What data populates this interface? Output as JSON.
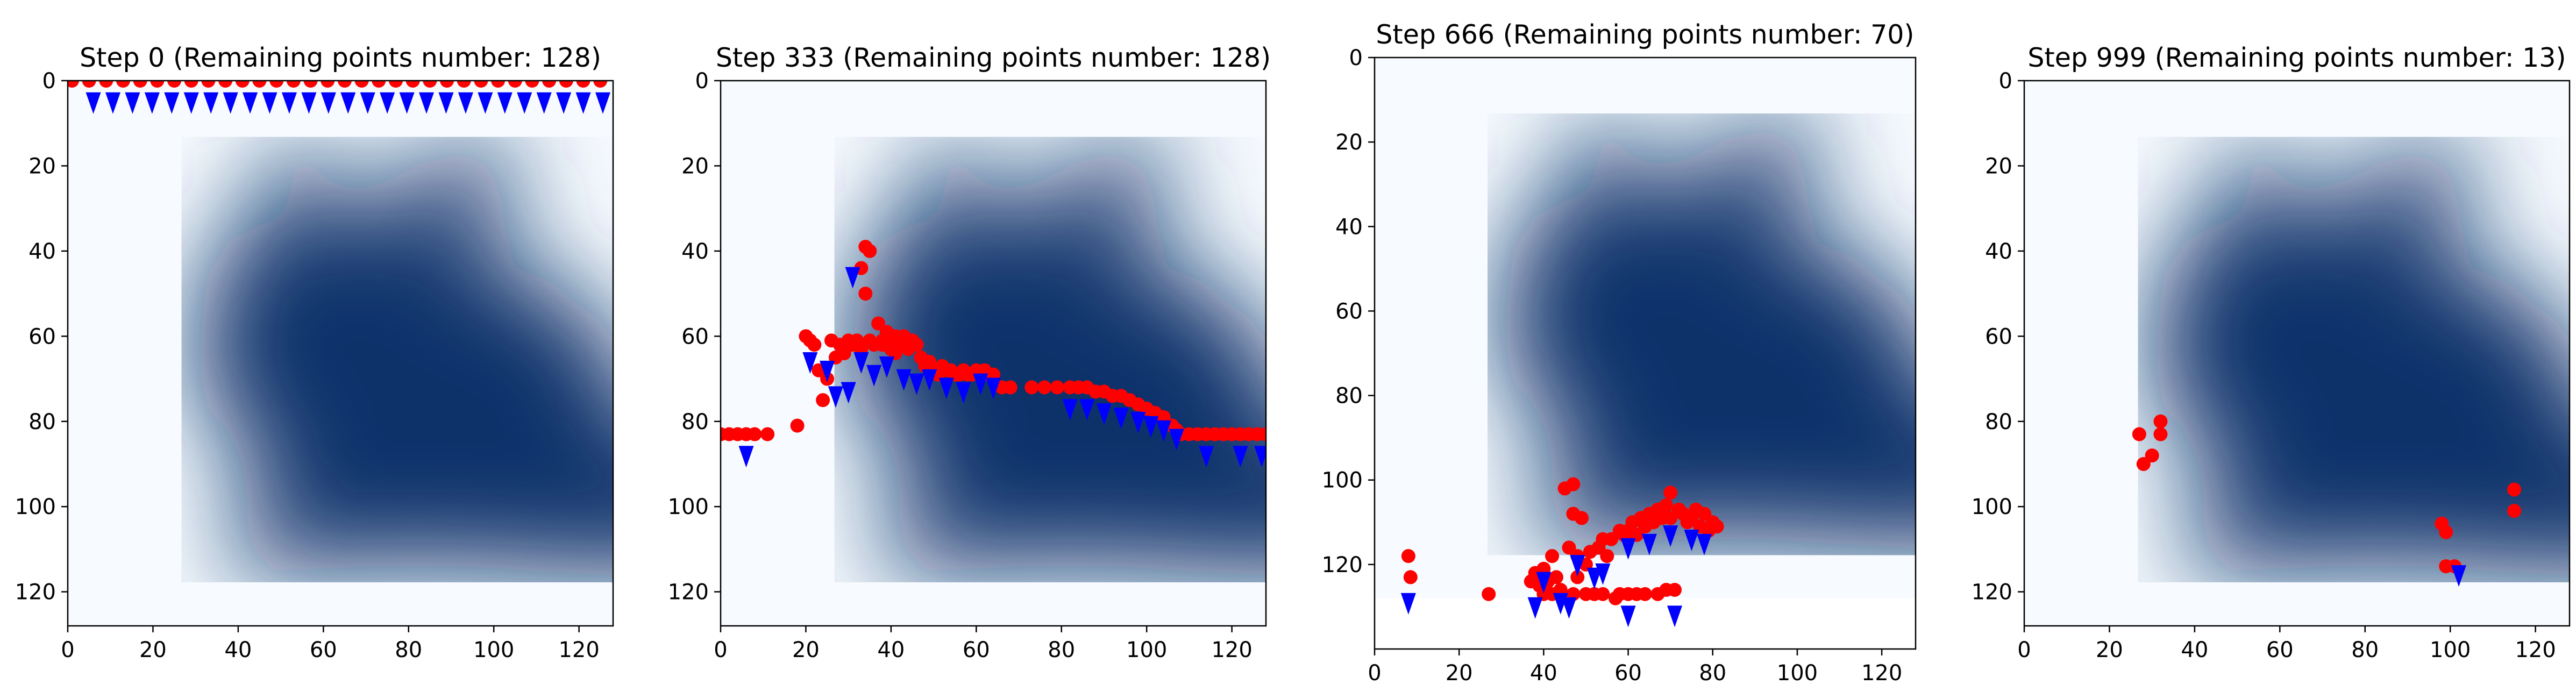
{
  "chart_data": [
    {
      "type": "scatter",
      "title": "Step 0 (Remaining points number: 128)",
      "xlim": [
        0,
        128
      ],
      "ylim": [
        128,
        0
      ],
      "xticks": [
        0,
        20,
        40,
        60,
        80,
        100,
        120
      ],
      "yticks": [
        0,
        20,
        40,
        60,
        80,
        100,
        120
      ],
      "background": "silhouette",
      "series": [
        {
          "marker": "circle",
          "color": "#ff0000",
          "points": [
            [
              1,
              0
            ],
            [
              5,
              0
            ],
            [
              9,
              0
            ],
            [
              13,
              0
            ],
            [
              17,
              0
            ],
            [
              21,
              0
            ],
            [
              25,
              0
            ],
            [
              29,
              0
            ],
            [
              33,
              0
            ],
            [
              37,
              0
            ],
            [
              41,
              0
            ],
            [
              45,
              0
            ],
            [
              49,
              0
            ],
            [
              53,
              0
            ],
            [
              57,
              0
            ],
            [
              61,
              0
            ],
            [
              65,
              0
            ],
            [
              69,
              0
            ],
            [
              73,
              0
            ],
            [
              77,
              0
            ],
            [
              81,
              0
            ],
            [
              85,
              0
            ],
            [
              89,
              0
            ],
            [
              93,
              0
            ],
            [
              97,
              0
            ],
            [
              101,
              0
            ],
            [
              105,
              0
            ],
            [
              109,
              0
            ],
            [
              113,
              0
            ],
            [
              117,
              0
            ],
            [
              121,
              0
            ],
            [
              125,
              0
            ]
          ]
        },
        {
          "marker": "arrow",
          "color": "#0000ff",
          "points": [
            [
              6,
              3
            ],
            [
              10.6,
              3
            ],
            [
              15.2,
              3
            ],
            [
              19.8,
              3
            ],
            [
              24.4,
              3
            ],
            [
              29,
              3
            ],
            [
              33.6,
              3
            ],
            [
              38.2,
              3
            ],
            [
              42.8,
              3
            ],
            [
              47.4,
              3
            ],
            [
              52,
              3
            ],
            [
              56.6,
              3
            ],
            [
              61.2,
              3
            ],
            [
              65.8,
              3
            ],
            [
              70.4,
              3
            ],
            [
              75,
              3
            ],
            [
              79.6,
              3
            ],
            [
              84.2,
              3
            ],
            [
              88.8,
              3
            ],
            [
              93.4,
              3
            ],
            [
              98,
              3
            ],
            [
              102.6,
              3
            ],
            [
              107.2,
              3
            ],
            [
              111.8,
              3
            ],
            [
              116.4,
              3
            ],
            [
              121,
              3
            ],
            [
              125.6,
              3
            ]
          ]
        }
      ]
    },
    {
      "type": "scatter",
      "title": "Step 333 (Remaining points number: 128)",
      "xlim": [
        0,
        128
      ],
      "ylim": [
        128,
        0
      ],
      "xticks": [
        0,
        20,
        40,
        60,
        80,
        100,
        120
      ],
      "yticks": [
        0,
        20,
        40,
        60,
        80,
        100,
        120
      ],
      "background": "silhouette",
      "series": [
        {
          "marker": "circle",
          "color": "#ff0000",
          "points": [
            [
              0,
              83
            ],
            [
              2,
              83
            ],
            [
              4,
              83
            ],
            [
              6,
              83
            ],
            [
              8,
              83
            ],
            [
              11,
              83
            ],
            [
              18,
              81
            ],
            [
              20,
              60
            ],
            [
              21,
              61
            ],
            [
              22,
              62
            ],
            [
              23,
              68
            ],
            [
              24,
              75
            ],
            [
              25,
              70
            ],
            [
              26,
              61
            ],
            [
              27,
              65
            ],
            [
              28,
              62
            ],
            [
              29,
              64
            ],
            [
              30,
              61
            ],
            [
              31,
              62
            ],
            [
              32,
              61
            ],
            [
              33,
              44
            ],
            [
              33,
              63
            ],
            [
              34,
              39
            ],
            [
              34,
              50
            ],
            [
              35,
              40
            ],
            [
              35,
              61
            ],
            [
              36,
              62
            ],
            [
              37,
              57
            ],
            [
              38,
              61
            ],
            [
              38,
              62
            ],
            [
              39,
              59
            ],
            [
              40,
              61
            ],
            [
              40,
              63
            ],
            [
              41,
              60
            ],
            [
              41,
              64
            ],
            [
              42,
              62
            ],
            [
              43,
              60
            ],
            [
              44,
              63
            ],
            [
              45,
              61
            ],
            [
              46,
              62
            ],
            [
              47,
              65
            ],
            [
              48,
              67
            ],
            [
              49,
              66
            ],
            [
              50,
              68
            ],
            [
              51,
              69
            ],
            [
              52,
              67
            ],
            [
              53,
              68
            ],
            [
              54,
              68
            ],
            [
              55,
              69
            ],
            [
              56,
              69
            ],
            [
              57,
              68
            ],
            [
              58,
              69
            ],
            [
              59,
              69
            ],
            [
              60,
              68
            ],
            [
              61,
              69
            ],
            [
              62,
              68
            ],
            [
              63,
              69
            ],
            [
              64,
              69
            ],
            [
              66,
              72
            ],
            [
              68,
              72
            ],
            [
              73,
              72
            ],
            [
              76,
              72
            ],
            [
              79,
              72
            ],
            [
              82,
              72
            ],
            [
              84,
              72
            ],
            [
              86,
              72
            ],
            [
              88,
              73
            ],
            [
              90,
              73
            ],
            [
              92,
              74
            ],
            [
              94,
              74
            ],
            [
              96,
              75
            ],
            [
              98,
              76
            ],
            [
              100,
              77
            ],
            [
              102,
              78
            ],
            [
              104,
              79
            ],
            [
              106,
              81
            ],
            [
              107,
              82
            ],
            [
              108,
              83
            ],
            [
              110,
              83
            ],
            [
              112,
              83
            ],
            [
              114,
              83
            ],
            [
              116,
              83
            ],
            [
              118,
              83
            ],
            [
              120,
              83
            ],
            [
              122,
              83
            ],
            [
              124,
              83
            ],
            [
              126,
              83
            ],
            [
              128,
              83
            ]
          ]
        },
        {
          "marker": "arrow",
          "color": "#0000ff",
          "points": [
            [
              6,
              86
            ],
            [
              21,
              64
            ],
            [
              25,
              66
            ],
            [
              27,
              72
            ],
            [
              30,
              71
            ],
            [
              31,
              44
            ],
            [
              33,
              64
            ],
            [
              36,
              67
            ],
            [
              39,
              65
            ],
            [
              43,
              68
            ],
            [
              46,
              69
            ],
            [
              49,
              68
            ],
            [
              53,
              70
            ],
            [
              57,
              71
            ],
            [
              61,
              69
            ],
            [
              64,
              70
            ],
            [
              82,
              75
            ],
            [
              86,
              75
            ],
            [
              90,
              76
            ],
            [
              94,
              77
            ],
            [
              98,
              78
            ],
            [
              101,
              79
            ],
            [
              104,
              80
            ],
            [
              107,
              82
            ],
            [
              114,
              86
            ],
            [
              122,
              86
            ],
            [
              127,
              86
            ]
          ]
        }
      ]
    },
    {
      "type": "scatter",
      "title": "Step 666 (Remaining points number: 70)",
      "xlim": [
        0,
        128
      ],
      "ylim": [
        140,
        0
      ],
      "xticks": [
        0,
        20,
        40,
        60,
        80,
        100,
        120
      ],
      "yticks": [
        0,
        20,
        40,
        60,
        80,
        100,
        120
      ],
      "background": "silhouette",
      "series": [
        {
          "marker": "circle",
          "color": "#ff0000",
          "points": [
            [
              8,
              118
            ],
            [
              8.5,
              123
            ],
            [
              27,
              127
            ],
            [
              37,
              124
            ],
            [
              38,
              122
            ],
            [
              39,
              125
            ],
            [
              40,
              121
            ],
            [
              40,
              127
            ],
            [
              41,
              124
            ],
            [
              42,
              118
            ],
            [
              42,
              127
            ],
            [
              43,
              123
            ],
            [
              44,
              126
            ],
            [
              45,
              102
            ],
            [
              46,
              116
            ],
            [
              47,
              101
            ],
            [
              47,
              108
            ],
            [
              47,
              127
            ],
            [
              48,
              118
            ],
            [
              48,
              123
            ],
            [
              49,
              109
            ],
            [
              50,
              120
            ],
            [
              50,
              127
            ],
            [
              51,
              117
            ],
            [
              52,
              127
            ],
            [
              53,
              116
            ],
            [
              54,
              114
            ],
            [
              54,
              127
            ],
            [
              55,
              118
            ],
            [
              56,
              114
            ],
            [
              57,
              128
            ],
            [
              58,
              112
            ],
            [
              58,
              127
            ],
            [
              59,
              113
            ],
            [
              60,
              112
            ],
            [
              60,
              127
            ],
            [
              61,
              110
            ],
            [
              62,
              113
            ],
            [
              62,
              127
            ],
            [
              63,
              109
            ],
            [
              64,
              111
            ],
            [
              64,
              127
            ],
            [
              65,
              108
            ],
            [
              66,
              110
            ],
            [
              67,
              107
            ],
            [
              67,
              127
            ],
            [
              68,
              109
            ],
            [
              69,
              106
            ],
            [
              69,
              126
            ],
            [
              70,
              103
            ],
            [
              70,
              109
            ],
            [
              71,
              126
            ],
            [
              72,
              107
            ],
            [
              73,
              108
            ],
            [
              74,
              110
            ],
            [
              75,
              109
            ],
            [
              76,
              107
            ],
            [
              77,
              111
            ],
            [
              78,
              108
            ],
            [
              79,
              112
            ],
            [
              80,
              110
            ],
            [
              81,
              111
            ]
          ]
        },
        {
          "marker": "arrow",
          "color": "#0000ff",
          "points": [
            [
              8,
              127
            ],
            [
              38,
              128
            ],
            [
              40,
              122
            ],
            [
              44,
              127
            ],
            [
              46,
              128
            ],
            [
              48,
              118
            ],
            [
              52,
              121
            ],
            [
              54,
              120
            ],
            [
              60,
              114
            ],
            [
              65,
              113
            ],
            [
              70,
              111
            ],
            [
              75,
              112
            ],
            [
              78,
              113
            ],
            [
              60,
              130
            ],
            [
              71,
              130
            ]
          ]
        }
      ]
    },
    {
      "type": "scatter",
      "title": "Step 999 (Remaining points number: 13)",
      "xlim": [
        0,
        128
      ],
      "ylim": [
        128,
        0
      ],
      "xticks": [
        0,
        20,
        40,
        60,
        80,
        100,
        120
      ],
      "yticks": [
        0,
        20,
        40,
        60,
        80,
        100,
        120
      ],
      "background": "silhouette",
      "series": [
        {
          "marker": "circle",
          "color": "#ff0000",
          "points": [
            [
              27,
              83
            ],
            [
              28,
              90
            ],
            [
              30,
              88
            ],
            [
              32,
              80
            ],
            [
              32,
              83
            ],
            [
              98,
              104
            ],
            [
              99,
              106
            ],
            [
              99,
              114
            ],
            [
              101,
              114
            ],
            [
              115,
              96
            ],
            [
              115,
              101
            ]
          ]
        },
        {
          "marker": "arrow",
          "color": "#0000ff",
          "points": [
            [
              102,
              114
            ]
          ]
        }
      ]
    }
  ]
}
